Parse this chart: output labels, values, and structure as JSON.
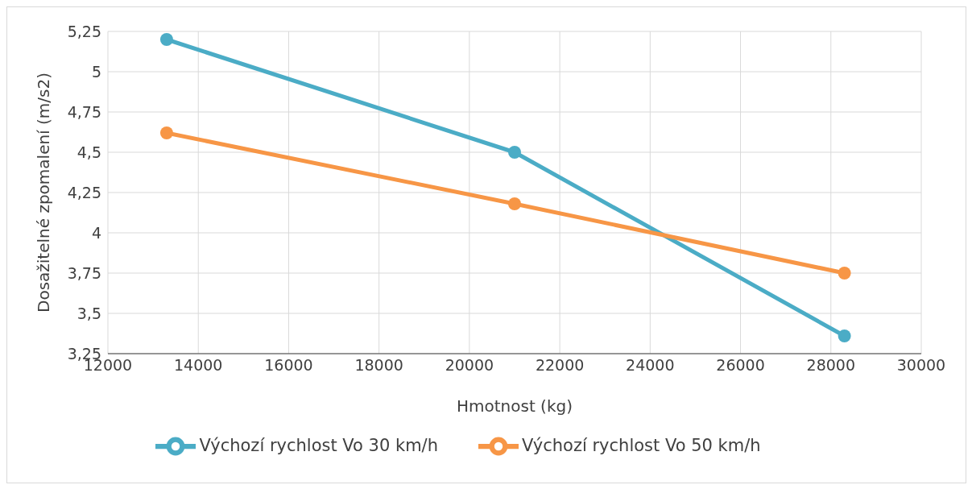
{
  "chart_data": {
    "type": "line",
    "xlabel": "Hmotnost (kg)",
    "ylabel": "Dosažitelné zpomalení (m/s2)",
    "x": [
      13300,
      21000,
      28300
    ],
    "series": [
      {
        "name": "Výchozí rychlost Vo 30 km/h",
        "color": "#4bacc6",
        "values": [
          5.2,
          4.5,
          3.36
        ]
      },
      {
        "name": "Výchozí rychlost Vo 50 km/h",
        "color": "#f79646",
        "values": [
          4.62,
          4.18,
          3.75
        ]
      }
    ],
    "xlim": [
      12000,
      30000
    ],
    "xticks": [
      12000,
      14000,
      16000,
      18000,
      20000,
      22000,
      24000,
      26000,
      28000,
      30000
    ],
    "ylim": [
      3.25,
      5.25
    ],
    "yticks": [
      {
        "value": 3.25,
        "label": "3,25"
      },
      {
        "value": 3.5,
        "label": "3,5"
      },
      {
        "value": 3.75,
        "label": "3,75"
      },
      {
        "value": 4,
        "label": "4"
      },
      {
        "value": 4.25,
        "label": "4,25"
      },
      {
        "value": 4.5,
        "label": "4,5"
      },
      {
        "value": 4.75,
        "label": "4,75"
      },
      {
        "value": 5,
        "label": "5"
      },
      {
        "value": 5.25,
        "label": "5,25"
      }
    ],
    "grid": true,
    "legend": "bottom",
    "marker": "circle",
    "line_style": "solid"
  }
}
